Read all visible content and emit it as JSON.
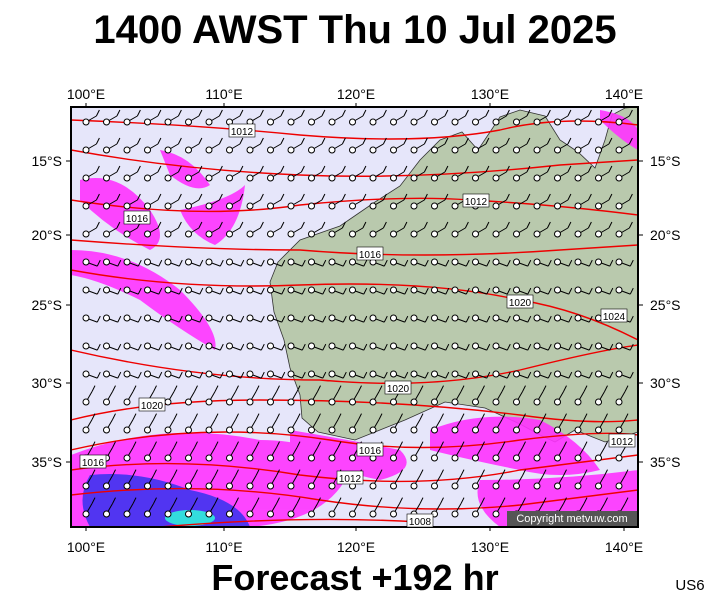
{
  "title": "1400 AWST Thu 10 Jul 2025",
  "subtitle": "Forecast +192 hr",
  "code": "US6",
  "copyright": "Copyright metvuw.com",
  "lon_labels": [
    "100°E",
    "110°E",
    "120°E",
    "130°E",
    "140°E"
  ],
  "lat_labels": [
    "15°S",
    "20°S",
    "25°S",
    "30°S",
    "35°S"
  ],
  "isobar_labels": [
    "1012",
    "1016",
    "1012",
    "1016",
    "1020",
    "1024",
    "1020",
    "1020",
    "1016",
    "1016",
    "1012",
    "1012",
    "1008"
  ]
}
